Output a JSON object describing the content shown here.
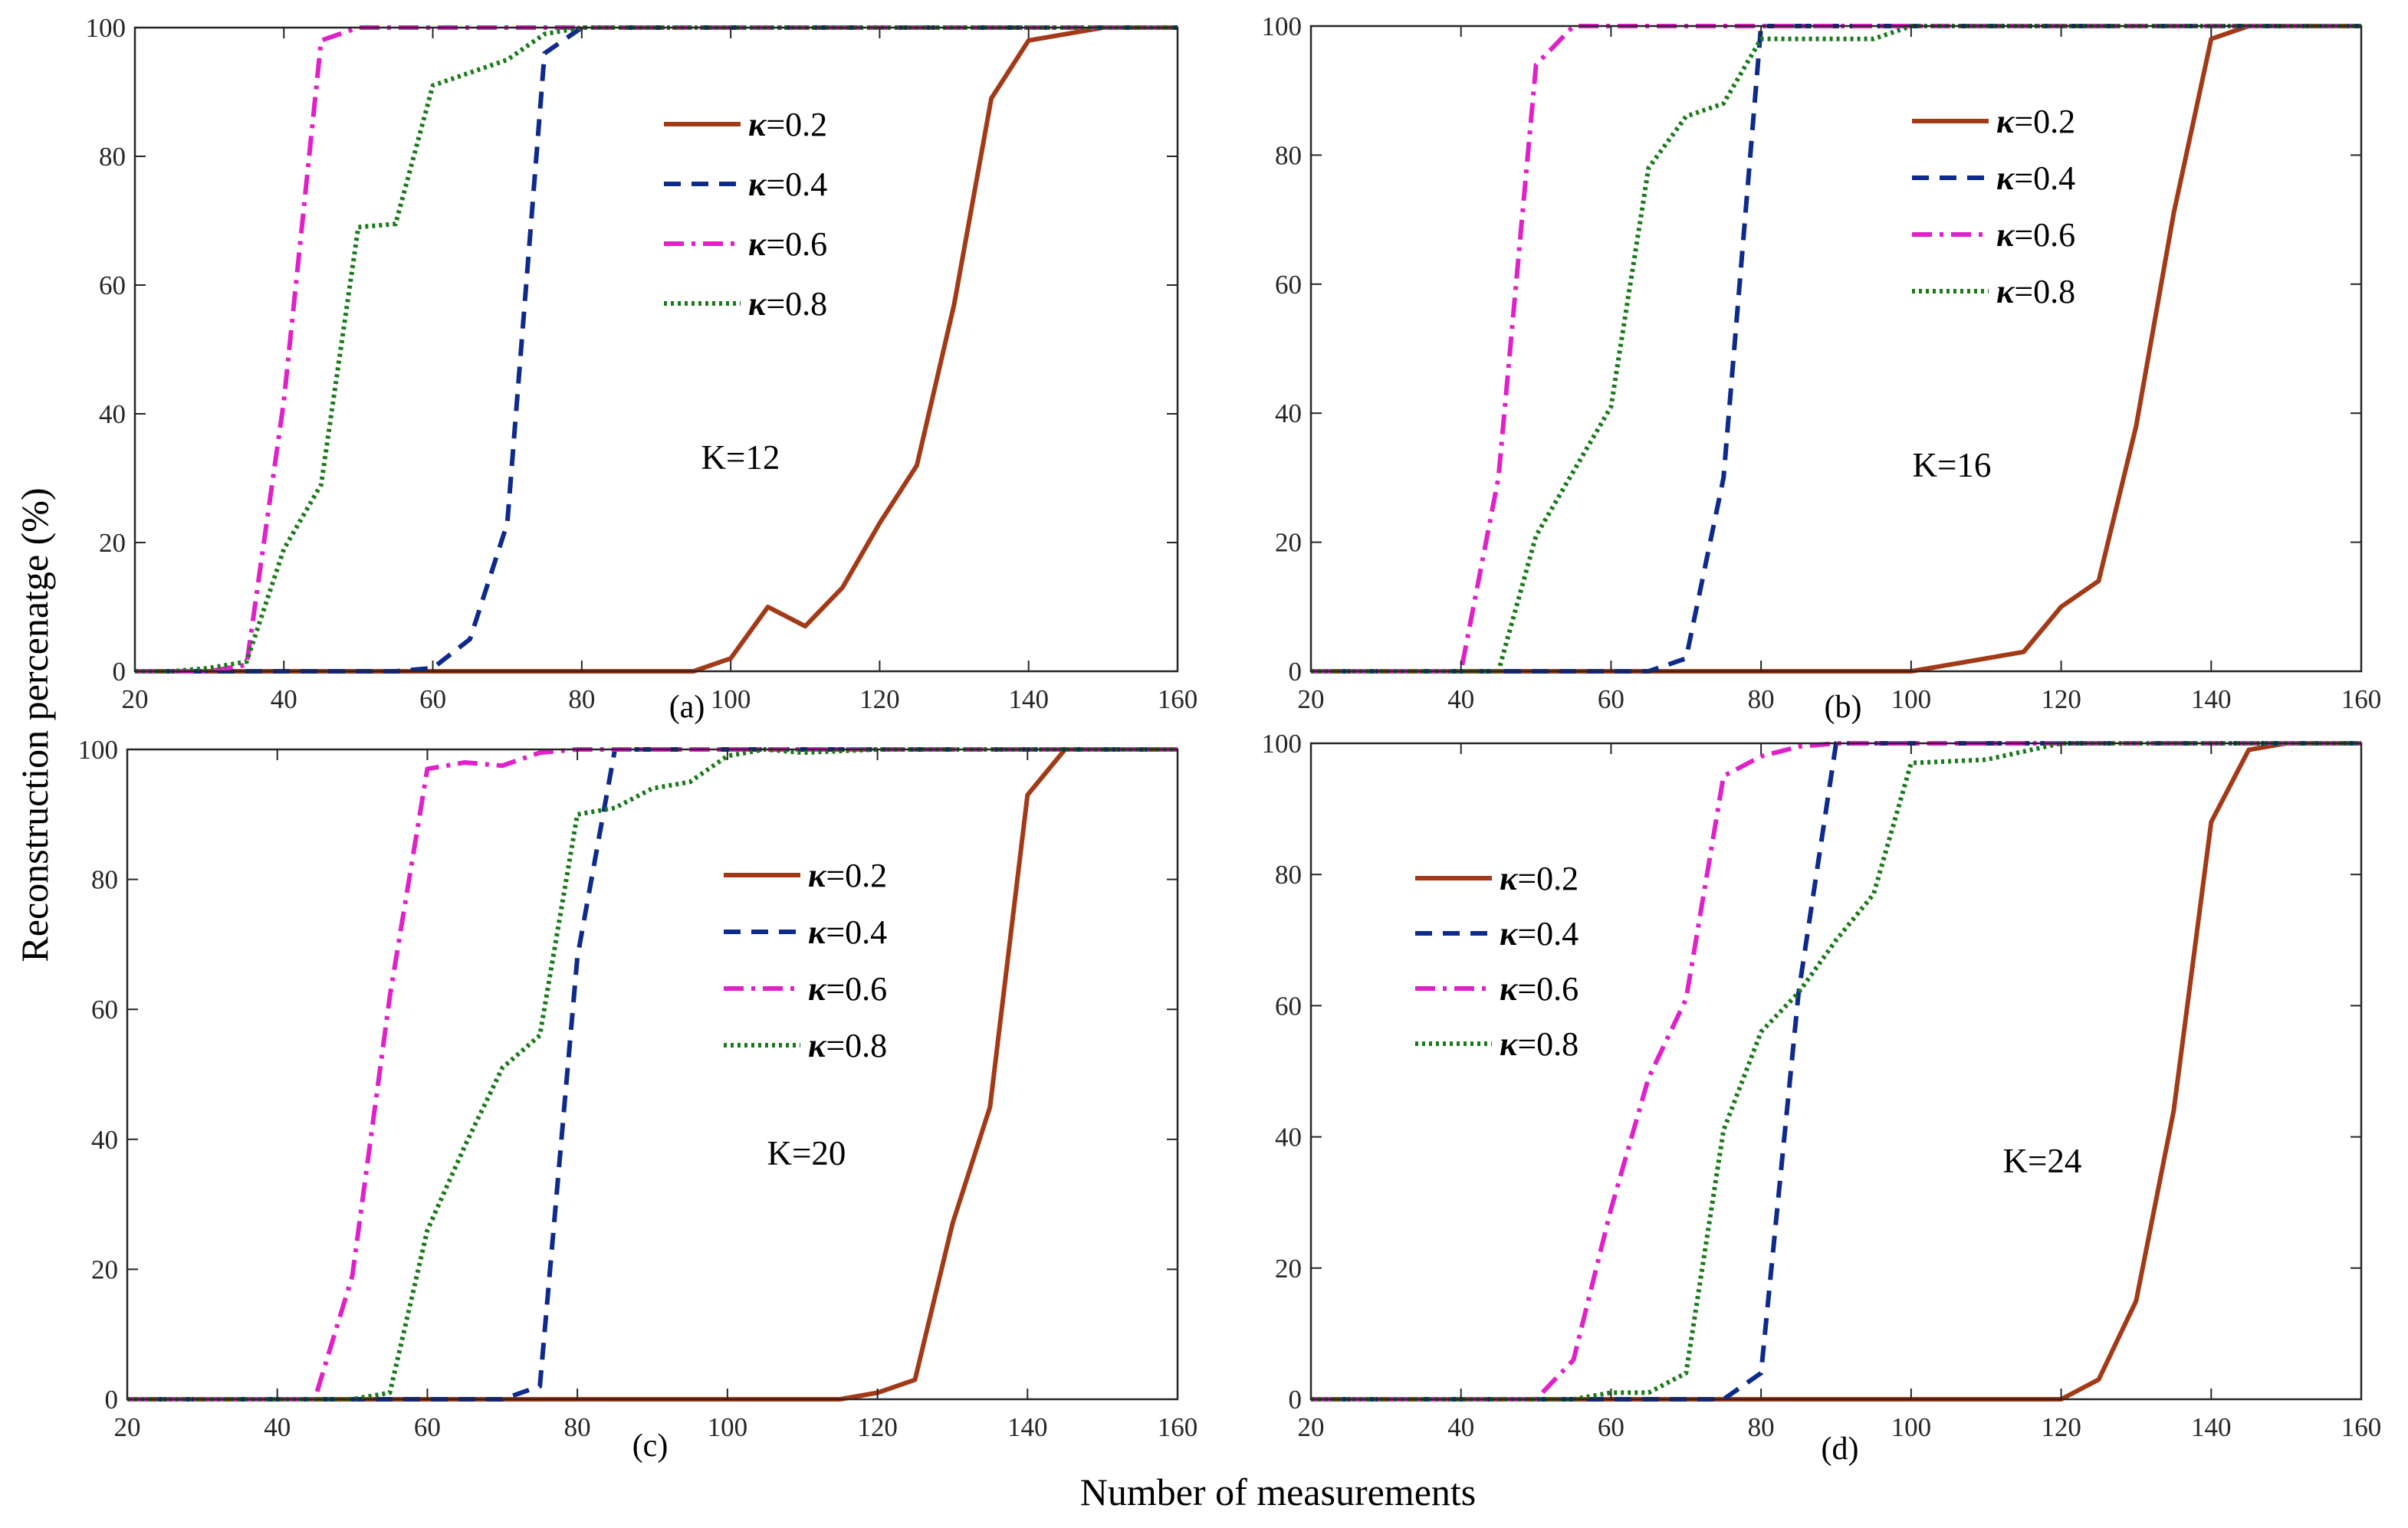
{
  "figure": {
    "xlabel": "Number of measurements",
    "ylabel": "Reconstruction percenatge (%)"
  },
  "chart_data": [
    {
      "type": "line",
      "panel_label": "(a)",
      "annotation": "K=12",
      "xlim": [
        20,
        160
      ],
      "ylim": [
        0,
        100
      ],
      "xticks": [
        20,
        40,
        60,
        80,
        100,
        120,
        140,
        160
      ],
      "yticks": [
        0,
        20,
        40,
        60,
        80,
        100
      ],
      "legend_position": "upper-middle",
      "series": [
        {
          "name": "κ=0.2",
          "symbol": "κ",
          "value_text": "=0.2",
          "color": "#A33A17",
          "style": "solid",
          "x": [
            20,
            30,
            40,
            50,
            60,
            70,
            80,
            90,
            95,
            100,
            105,
            110,
            115,
            120,
            125,
            130,
            135,
            140,
            145,
            150,
            155,
            160
          ],
          "y": [
            0,
            0,
            0,
            0,
            0,
            0,
            0,
            0,
            0,
            2,
            10,
            7,
            13,
            23,
            32,
            57,
            89,
            98,
            99,
            100,
            100,
            100
          ]
        },
        {
          "name": "κ=0.4",
          "symbol": "κ",
          "value_text": "=0.4",
          "color": "#0D2A8C",
          "style": "dashed",
          "x": [
            20,
            30,
            40,
            50,
            55,
            60,
            65,
            70,
            75,
            80,
            85,
            90,
            100,
            110,
            120,
            130,
            140,
            150,
            160
          ],
          "y": [
            0,
            0,
            0,
            0,
            0,
            0.5,
            5,
            23,
            96,
            100,
            100,
            100,
            100,
            100,
            100,
            100,
            100,
            100,
            100
          ]
        },
        {
          "name": "κ=0.6",
          "symbol": "κ",
          "value_text": "=0.6",
          "color": "#E020C8",
          "style": "dashdot",
          "x": [
            20,
            25,
            30,
            35,
            40,
            45,
            50,
            55,
            60,
            70,
            80,
            90,
            100,
            120,
            140,
            160
          ],
          "y": [
            0,
            0,
            0,
            1,
            42,
            98,
            100,
            100,
            100,
            100,
            100,
            100,
            100,
            100,
            100,
            100
          ]
        },
        {
          "name": "κ=0.8",
          "symbol": "κ",
          "value_text": "=0.8",
          "color": "#1A7A1A",
          "style": "dotted",
          "x": [
            20,
            25,
            30,
            35,
            40,
            45,
            50,
            55,
            60,
            65,
            70,
            75,
            80,
            85,
            90,
            100,
            120,
            140,
            160
          ],
          "y": [
            0,
            0,
            0.5,
            1.5,
            19,
            29,
            69,
            69.5,
            91,
            93,
            95,
            99,
            100,
            100,
            100,
            100,
            100,
            100,
            100
          ]
        }
      ]
    },
    {
      "type": "line",
      "panel_label": "(b)",
      "annotation": "K=16",
      "xlim": [
        20,
        160
      ],
      "ylim": [
        0,
        100
      ],
      "xticks": [
        20,
        40,
        60,
        80,
        100,
        120,
        140,
        160
      ],
      "yticks": [
        0,
        20,
        40,
        60,
        80,
        100
      ],
      "legend_position": "upper-right",
      "series": [
        {
          "name": "κ=0.2",
          "symbol": "κ",
          "value_text": "=0.2",
          "color": "#A33A17",
          "style": "solid",
          "x": [
            20,
            40,
            60,
            80,
            100,
            110,
            115,
            120,
            125,
            130,
            135,
            140,
            145,
            150,
            160
          ],
          "y": [
            0,
            0,
            0,
            0,
            0,
            2,
            3,
            10,
            14,
            38,
            71,
            98,
            100,
            100,
            100
          ]
        },
        {
          "name": "κ=0.4",
          "symbol": "κ",
          "value_text": "=0.4",
          "color": "#0D2A8C",
          "style": "dashed",
          "x": [
            20,
            40,
            60,
            65,
            70,
            75,
            80,
            85,
            90,
            100,
            120,
            140,
            160
          ],
          "y": [
            0,
            0,
            0,
            0,
            2,
            30,
            100,
            100,
            100,
            100,
            100,
            100,
            100
          ]
        },
        {
          "name": "κ=0.6",
          "symbol": "κ",
          "value_text": "=0.6",
          "color": "#E020C8",
          "style": "dashdot",
          "x": [
            20,
            30,
            40,
            45,
            50,
            55,
            60,
            70,
            80,
            100,
            120,
            140,
            160
          ],
          "y": [
            0,
            0,
            0,
            30,
            94,
            100,
            100,
            100,
            100,
            100,
            100,
            100,
            100
          ]
        },
        {
          "name": "κ=0.8",
          "symbol": "κ",
          "value_text": "=0.8",
          "color": "#1A7A1A",
          "style": "dotted",
          "x": [
            20,
            40,
            45,
            50,
            55,
            60,
            65,
            70,
            75,
            80,
            85,
            90,
            95,
            100,
            120,
            140,
            160
          ],
          "y": [
            0,
            0,
            0,
            21,
            31,
            41,
            78,
            86,
            88,
            98,
            98,
            98,
            98,
            100,
            100,
            100,
            100
          ]
        }
      ]
    },
    {
      "type": "line",
      "panel_label": "(c)",
      "annotation": "K=20",
      "xlim": [
        20,
        160
      ],
      "ylim": [
        0,
        100
      ],
      "xticks": [
        20,
        40,
        60,
        80,
        100,
        120,
        140,
        160
      ],
      "yticks": [
        0,
        20,
        40,
        60,
        80,
        100
      ],
      "legend_position": "upper-middle",
      "series": [
        {
          "name": "κ=0.2",
          "symbol": "κ",
          "value_text": "=0.2",
          "color": "#A33A17",
          "style": "solid",
          "x": [
            20,
            40,
            60,
            80,
            100,
            115,
            120,
            125,
            130,
            135,
            140,
            145,
            150,
            160
          ],
          "y": [
            0,
            0,
            0,
            0,
            0,
            0,
            1,
            3,
            27,
            45,
            93,
            100,
            100,
            100
          ]
        },
        {
          "name": "κ=0.4",
          "symbol": "κ",
          "value_text": "=0.4",
          "color": "#0D2A8C",
          "style": "dashed",
          "x": [
            20,
            40,
            60,
            70,
            75,
            80,
            85,
            90,
            100,
            120,
            140,
            160
          ],
          "y": [
            0,
            0,
            0,
            0,
            2,
            68,
            100,
            100,
            100,
            100,
            100,
            100
          ]
        },
        {
          "name": "κ=0.6",
          "symbol": "κ",
          "value_text": "=0.6",
          "color": "#E020C8",
          "style": "dashdot",
          "x": [
            20,
            40,
            45,
            50,
            55,
            60,
            65,
            70,
            75,
            80,
            90,
            100,
            120,
            140,
            160
          ],
          "y": [
            0,
            0,
            0,
            19,
            62,
            97,
            98,
            97.5,
            99.5,
            100,
            100,
            100,
            100,
            100,
            100
          ]
        },
        {
          "name": "κ=0.8",
          "symbol": "κ",
          "value_text": "=0.8",
          "color": "#1A7A1A",
          "style": "dotted",
          "x": [
            20,
            40,
            50,
            55,
            60,
            65,
            70,
            75,
            80,
            85,
            90,
            95,
            100,
            105,
            110,
            120,
            140,
            160
          ],
          "y": [
            0,
            0,
            0,
            1,
            26,
            39,
            51,
            56,
            90,
            91,
            94,
            95,
            99,
            100,
            99.5,
            100,
            100,
            100
          ]
        }
      ]
    },
    {
      "type": "line",
      "panel_label": "(d)",
      "annotation": "K=24",
      "xlim": [
        20,
        160
      ],
      "ylim": [
        0,
        100
      ],
      "xticks": [
        20,
        40,
        60,
        80,
        100,
        120,
        140,
        160
      ],
      "yticks": [
        0,
        20,
        40,
        60,
        80,
        100
      ],
      "legend_position": "upper-left",
      "series": [
        {
          "name": "κ=0.2",
          "symbol": "κ",
          "value_text": "=0.2",
          "color": "#A33A17",
          "style": "solid",
          "x": [
            20,
            40,
            60,
            80,
            100,
            120,
            125,
            130,
            135,
            140,
            145,
            150,
            160
          ],
          "y": [
            0,
            0,
            0,
            0,
            0,
            0,
            3,
            15,
            44,
            88,
            99,
            100,
            100
          ]
        },
        {
          "name": "κ=0.4",
          "symbol": "κ",
          "value_text": "=0.4",
          "color": "#0D2A8C",
          "style": "dashed",
          "x": [
            20,
            40,
            60,
            75,
            80,
            85,
            90,
            100,
            120,
            140,
            160
          ],
          "y": [
            0,
            0,
            0,
            0,
            4,
            62,
            100,
            100,
            100,
            100,
            100
          ]
        },
        {
          "name": "κ=0.6",
          "symbol": "κ",
          "value_text": "=0.6",
          "color": "#E020C8",
          "style": "dashdot",
          "x": [
            20,
            40,
            50,
            55,
            60,
            65,
            70,
            75,
            80,
            85,
            90,
            100,
            120,
            140,
            160
          ],
          "y": [
            0,
            0,
            0,
            6,
            29,
            49,
            61,
            95,
            98,
            99.5,
            100,
            100,
            100,
            100,
            100
          ]
        },
        {
          "name": "κ=0.8",
          "symbol": "κ",
          "value_text": "=0.8",
          "color": "#1A7A1A",
          "style": "dotted",
          "x": [
            20,
            40,
            55,
            60,
            65,
            70,
            75,
            80,
            85,
            90,
            95,
            100,
            110,
            120,
            140,
            160
          ],
          "y": [
            0,
            0,
            0,
            1,
            1,
            4,
            41,
            56,
            62,
            70,
            77,
            97,
            97.5,
            100,
            100,
            100
          ]
        }
      ]
    }
  ]
}
